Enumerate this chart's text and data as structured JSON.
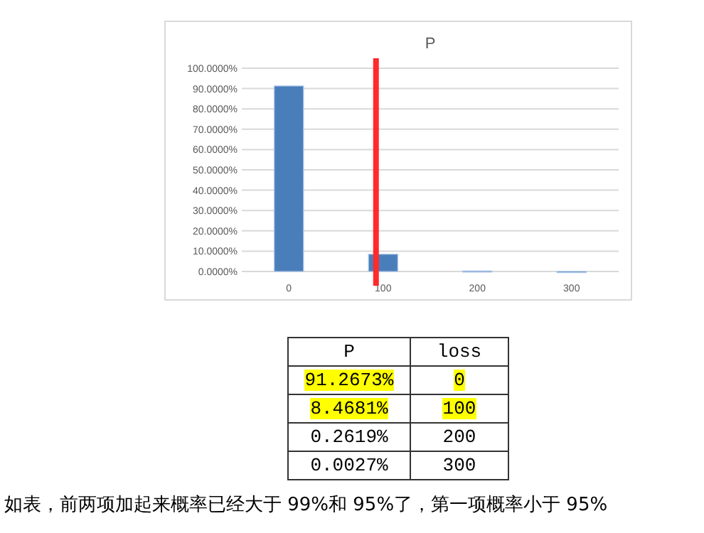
{
  "chart_data": {
    "type": "bar",
    "title": "P",
    "categories": [
      "0",
      "100",
      "200",
      "300"
    ],
    "values": [
      91.2673,
      8.4681,
      0.2619,
      0.0027
    ],
    "color": "#4a7ebb",
    "ylim": [
      0,
      100
    ],
    "yticks": [
      {
        "value": 0,
        "label": "0.0000%"
      },
      {
        "value": 10,
        "label": "10.0000%"
      },
      {
        "value": 20,
        "label": "20.0000%"
      },
      {
        "value": 30,
        "label": "30.0000%"
      },
      {
        "value": 40,
        "label": "40.0000%"
      },
      {
        "value": 50,
        "label": "50.0000%"
      },
      {
        "value": 60,
        "label": "60.0000%"
      },
      {
        "value": 70,
        "label": "70.0000%"
      },
      {
        "value": 80,
        "label": "80.0000%"
      },
      {
        "value": 90,
        "label": "90.0000%"
      },
      {
        "value": 100,
        "label": "100.0000%"
      }
    ],
    "grid": "y",
    "ref_lines": [
      {
        "axis": "x",
        "value": "100",
        "color": "#ff2a2a"
      }
    ],
    "annotations": [
      "P",
      "loss",
      "91.2673%",
      "8.4681%",
      "0.2619%",
      "0.0027%",
      "如表，前两项加起来概率已经大于 99%和 95%了，第一项概率小于 95%"
    ]
  }
}
